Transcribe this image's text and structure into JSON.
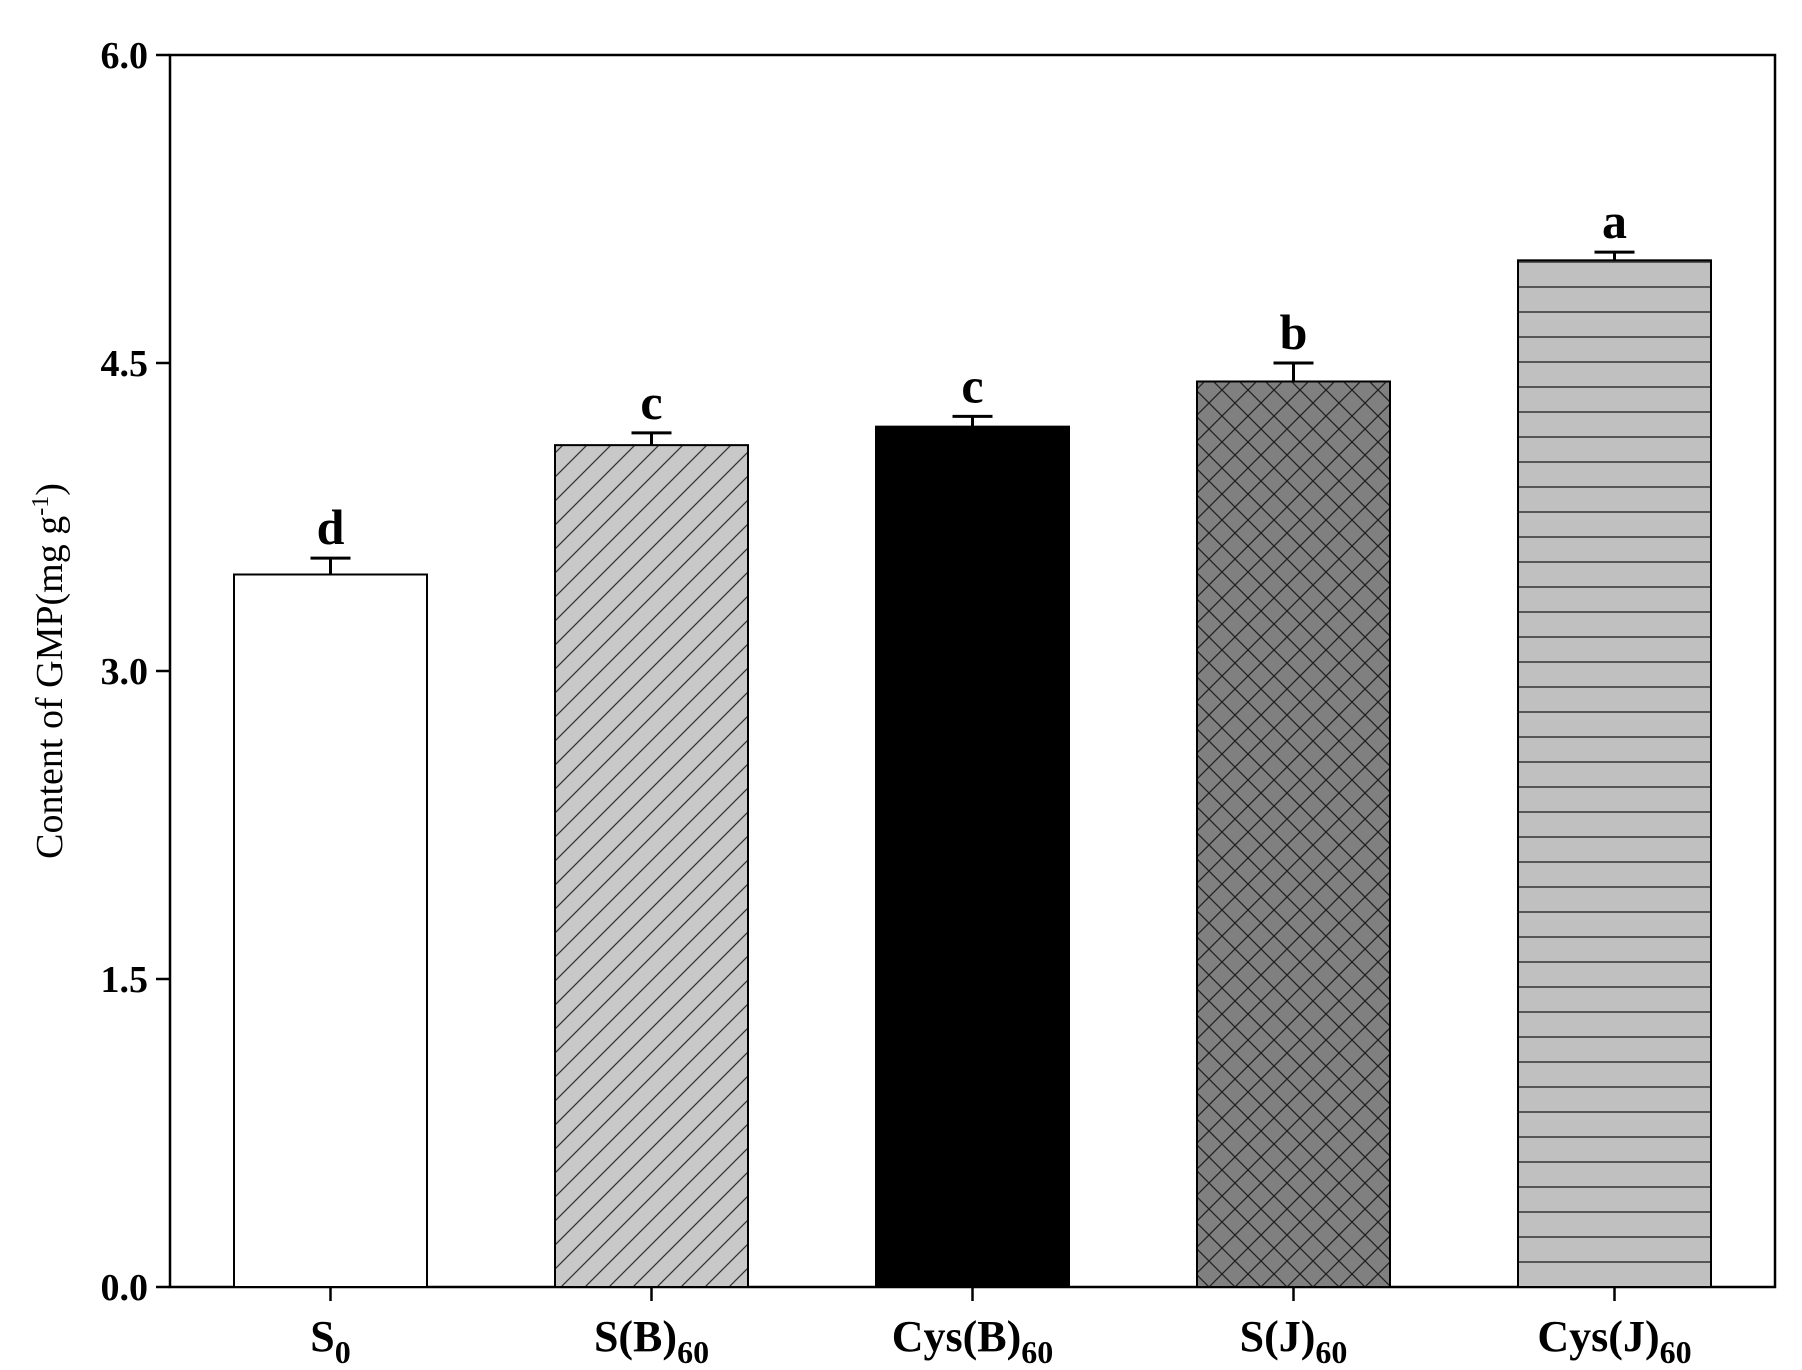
{
  "chart_data": {
    "type": "bar",
    "categories": [
      {
        "main": "S",
        "sub": "0"
      },
      {
        "main": "S(B)",
        "sub": "60"
      },
      {
        "main": "Cys(B)",
        "sub": "60"
      },
      {
        "main": "S(J)",
        "sub": "60"
      },
      {
        "main": "Cys(J)",
        "sub": "60"
      }
    ],
    "values": [
      3.47,
      4.1,
      4.19,
      4.41,
      5.0
    ],
    "errors": [
      0.08,
      0.06,
      0.05,
      0.09,
      0.04
    ],
    "significance": [
      "d",
      "c",
      "c",
      "b",
      "a"
    ],
    "patterns": [
      "none",
      "diagonal",
      "solid",
      "crosshatch",
      "horizontal"
    ],
    "fills": [
      "#ffffff",
      "#c8c8c8",
      "#000000",
      "#808080",
      "#c0c0c0"
    ],
    "ylabel": {
      "main": "Content of GMP(mg g",
      "sup": "-1",
      "end": ")"
    },
    "ylim": [
      0,
      6
    ],
    "yticks": [
      "0.0",
      "1.5",
      "3.0",
      "4.5",
      "6.0"
    ],
    "grid": false
  }
}
